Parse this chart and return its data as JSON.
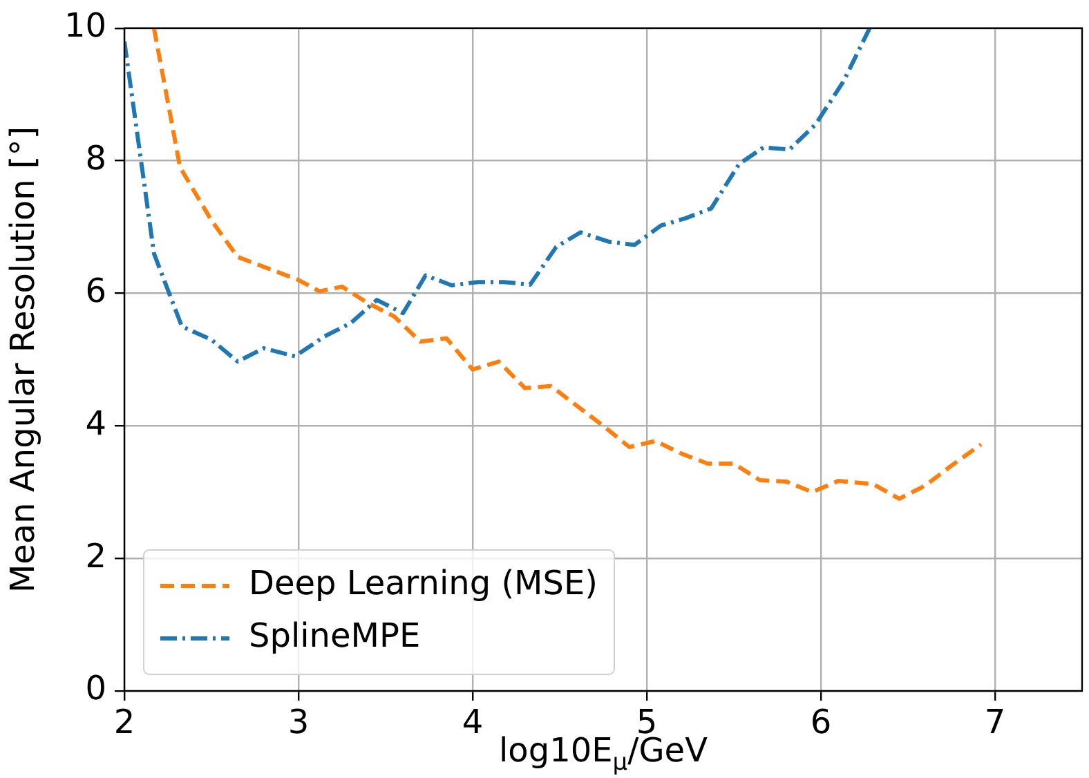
{
  "chart_data": {
    "type": "line",
    "xlabel": "log10E$_{μ}$/GeV",
    "ylabel": "Mean Angular Resolution [°]",
    "xlim": [
      2,
      7.5
    ],
    "xticks": [
      2,
      3,
      4,
      5,
      6,
      7
    ],
    "ylim": [
      0,
      10
    ],
    "yticks": [
      0,
      2,
      4,
      6,
      8,
      10
    ],
    "grid": true,
    "legend": "bottom left",
    "marker": "none",
    "series": [
      {
        "name": "Deep Learning (MSE)",
        "color": "#ff7f0e",
        "line_style": "dashed",
        "x": [
          2.17,
          2.32,
          2.5,
          2.65,
          2.8,
          3.0,
          3.12,
          3.25,
          3.4,
          3.55,
          3.7,
          3.85,
          4.0,
          4.15,
          4.3,
          4.45,
          4.6,
          4.75,
          4.9,
          5.05,
          5.2,
          5.35,
          5.5,
          5.65,
          5.8,
          5.95,
          6.1,
          6.3,
          6.45,
          6.6,
          6.75,
          6.92
        ],
        "values": [
          10,
          7.9,
          7.1,
          6.55,
          6.4,
          6.2,
          6.03,
          6.1,
          5.85,
          5.65,
          5.27,
          5.32,
          4.85,
          4.97,
          4.57,
          4.6,
          4.3,
          4.0,
          3.68,
          3.77,
          3.58,
          3.43,
          3.43,
          3.18,
          3.16,
          3.0,
          3.17,
          3.12,
          2.9,
          3.1,
          3.4,
          3.72
        ]
      },
      {
        "name": "SplineMPE",
        "color": "#1f77b4",
        "line_style": "dashdot",
        "x": [
          2.0,
          2.17,
          2.33,
          2.5,
          2.65,
          2.8,
          2.98,
          3.15,
          3.3,
          3.45,
          3.6,
          3.73,
          3.88,
          4.03,
          4.18,
          4.33,
          4.48,
          4.62,
          4.78,
          4.93,
          5.08,
          5.22,
          5.37,
          5.53,
          5.67,
          5.82,
          5.97,
          6.13,
          6.28
        ],
        "values": [
          9.8,
          6.6,
          5.5,
          5.3,
          4.97,
          5.17,
          5.05,
          5.35,
          5.55,
          5.9,
          5.7,
          6.27,
          6.12,
          6.17,
          6.17,
          6.13,
          6.7,
          6.92,
          6.78,
          6.73,
          7.02,
          7.13,
          7.28,
          7.95,
          8.2,
          8.17,
          8.55,
          9.2,
          10
        ]
      }
    ]
  }
}
